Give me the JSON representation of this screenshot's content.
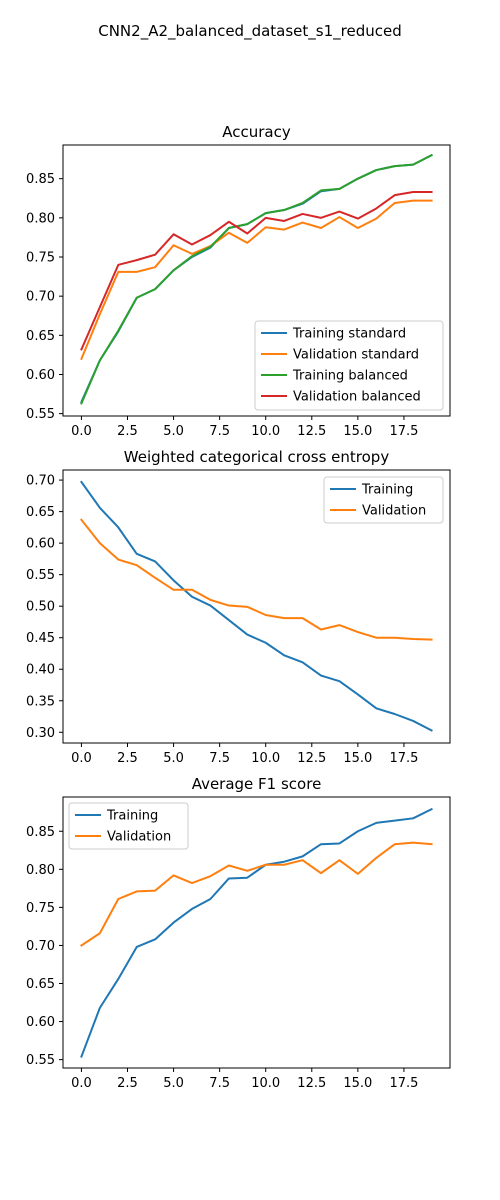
{
  "figure_title": "CNN2_A2_balanced_dataset_s1_reduced",
  "colors": {
    "blue": "#1f77b4",
    "orange": "#ff7f0e",
    "green": "#2ca02c",
    "red": "#d62728"
  },
  "chart_data": [
    {
      "type": "line",
      "title": "Accuracy",
      "xlabel": "",
      "ylabel": "",
      "x": [
        0,
        1,
        2,
        3,
        4,
        5,
        6,
        7,
        8,
        9,
        10,
        11,
        12,
        13,
        14,
        15,
        16,
        17,
        18,
        19
      ],
      "xlim": [
        -1,
        20
      ],
      "ylim": [
        0.547,
        0.893
      ],
      "xticks": [
        0.0,
        2.5,
        5.0,
        7.5,
        10.0,
        12.5,
        15.0,
        17.5
      ],
      "xtick_labels": [
        "0.0",
        "2.5",
        "5.0",
        "7.5",
        "10.0",
        "12.5",
        "15.0",
        "17.5"
      ],
      "yticks": [
        0.55,
        0.6,
        0.65,
        0.7,
        0.75,
        0.8,
        0.85
      ],
      "ytick_labels": [
        "0.55",
        "0.60",
        "0.65",
        "0.70",
        "0.75",
        "0.80",
        "0.85"
      ],
      "legend_position": "lower-right",
      "series": [
        {
          "name": "Training standard",
          "color": "#1f77b4",
          "values": [
            0.565,
            0.618,
            0.655,
            0.698,
            0.709,
            0.733,
            0.75,
            0.762,
            0.787,
            0.792,
            0.806,
            0.81,
            0.818,
            0.834,
            0.837,
            0.85,
            0.861,
            0.866,
            0.868,
            0.88
          ]
        },
        {
          "name": "Validation standard",
          "color": "#ff7f0e",
          "values": [
            0.62,
            0.677,
            0.731,
            0.731,
            0.737,
            0.765,
            0.754,
            0.764,
            0.781,
            0.768,
            0.788,
            0.785,
            0.794,
            0.787,
            0.801,
            0.787,
            0.799,
            0.819,
            0.822,
            0.822
          ]
        },
        {
          "name": "Training balanced",
          "color": "#2ca02c",
          "values": [
            0.563,
            0.618,
            0.656,
            0.698,
            0.709,
            0.733,
            0.751,
            0.763,
            0.787,
            0.792,
            0.806,
            0.81,
            0.819,
            0.835,
            0.837,
            0.85,
            0.861,
            0.866,
            0.868,
            0.88
          ]
        },
        {
          "name": "Validation balanced",
          "color": "#d62728",
          "values": [
            0.632,
            0.686,
            0.74,
            0.746,
            0.753,
            0.779,
            0.766,
            0.778,
            0.795,
            0.78,
            0.8,
            0.796,
            0.805,
            0.8,
            0.808,
            0.799,
            0.812,
            0.829,
            0.833,
            0.833
          ]
        }
      ]
    },
    {
      "type": "line",
      "title": "Weighted categorical cross entropy",
      "xlabel": "",
      "ylabel": "",
      "x": [
        0,
        1,
        2,
        3,
        4,
        5,
        6,
        7,
        8,
        9,
        10,
        11,
        12,
        13,
        14,
        15,
        16,
        17,
        18,
        19
      ],
      "xlim": [
        -1,
        20
      ],
      "ylim": [
        0.283,
        0.716
      ],
      "xticks": [
        0.0,
        2.5,
        5.0,
        7.5,
        10.0,
        12.5,
        15.0,
        17.5
      ],
      "xtick_labels": [
        "0.0",
        "2.5",
        "5.0",
        "7.5",
        "10.0",
        "12.5",
        "15.0",
        "17.5"
      ],
      "yticks": [
        0.3,
        0.35,
        0.4,
        0.45,
        0.5,
        0.55,
        0.6,
        0.65,
        0.7
      ],
      "ytick_labels": [
        "0.30",
        "0.35",
        "0.40",
        "0.45",
        "0.50",
        "0.55",
        "0.60",
        "0.65",
        "0.70"
      ],
      "legend_position": "upper-right",
      "series": [
        {
          "name": "Training",
          "color": "#1f77b4",
          "values": [
            0.697,
            0.656,
            0.625,
            0.583,
            0.571,
            0.541,
            0.515,
            0.501,
            0.478,
            0.455,
            0.442,
            0.422,
            0.411,
            0.39,
            0.381,
            0.36,
            0.338,
            0.329,
            0.318,
            0.303
          ]
        },
        {
          "name": "Validation",
          "color": "#ff7f0e",
          "values": [
            0.637,
            0.6,
            0.574,
            0.565,
            0.545,
            0.526,
            0.526,
            0.51,
            0.501,
            0.499,
            0.486,
            0.481,
            0.481,
            0.463,
            0.47,
            0.459,
            0.45,
            0.45,
            0.448,
            0.447
          ]
        }
      ]
    },
    {
      "type": "line",
      "title": "Average F1 score",
      "xlabel": "",
      "ylabel": "",
      "x": [
        0,
        1,
        2,
        3,
        4,
        5,
        6,
        7,
        8,
        9,
        10,
        11,
        12,
        13,
        14,
        15,
        16,
        17,
        18,
        19
      ],
      "xlim": [
        -1,
        20
      ],
      "ylim": [
        0.539,
        0.895
      ],
      "xticks": [
        0.0,
        2.5,
        5.0,
        7.5,
        10.0,
        12.5,
        15.0,
        17.5
      ],
      "xtick_labels": [
        "0.0",
        "2.5",
        "5.0",
        "7.5",
        "10.0",
        "12.5",
        "15.0",
        "17.5"
      ],
      "yticks": [
        0.55,
        0.6,
        0.65,
        0.7,
        0.75,
        0.8,
        0.85
      ],
      "ytick_labels": [
        "0.55",
        "0.60",
        "0.65",
        "0.70",
        "0.75",
        "0.80",
        "0.85"
      ],
      "legend_position": "upper-left",
      "series": [
        {
          "name": "Training",
          "color": "#1f77b4",
          "values": [
            0.554,
            0.618,
            0.656,
            0.698,
            0.708,
            0.73,
            0.748,
            0.761,
            0.788,
            0.789,
            0.806,
            0.81,
            0.817,
            0.833,
            0.834,
            0.85,
            0.861,
            0.864,
            0.867,
            0.879
          ]
        },
        {
          "name": "Validation",
          "color": "#ff7f0e",
          "values": [
            0.7,
            0.716,
            0.761,
            0.771,
            0.772,
            0.792,
            0.782,
            0.791,
            0.805,
            0.798,
            0.806,
            0.806,
            0.812,
            0.795,
            0.812,
            0.794,
            0.815,
            0.833,
            0.835,
            0.833
          ]
        }
      ]
    }
  ]
}
